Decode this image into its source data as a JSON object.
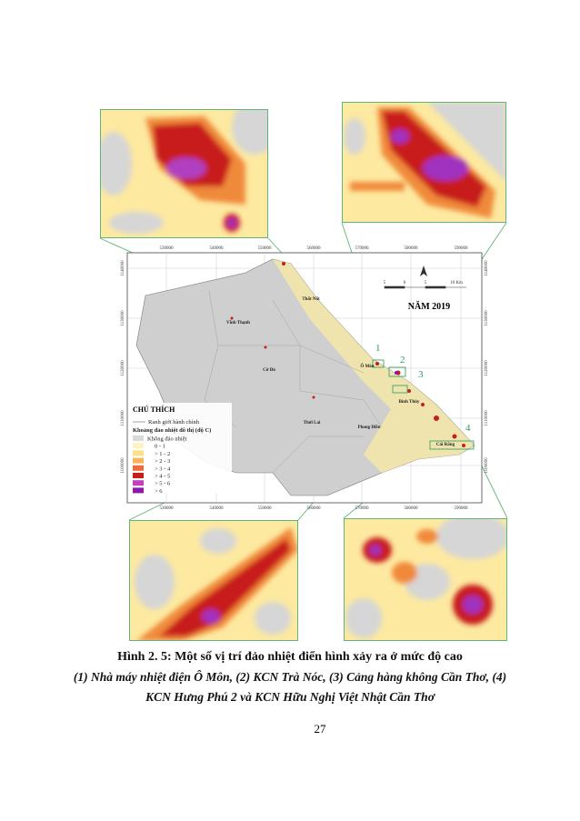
{
  "map": {
    "x_labels": [
      "530000",
      "540000",
      "550000",
      "560000",
      "570000",
      "580000",
      "590000"
    ],
    "y_labels": [
      "1140000",
      "1130000",
      "1120000",
      "1110000",
      "1100000"
    ],
    "places": [
      "Thốt Nốt",
      "Vĩnh Thạnh",
      "Cờ Đỏ",
      "Ô Môn",
      "Bình Thủy",
      "Thới Lai",
      "Phong Điền",
      "Cái Răng"
    ],
    "insets": [
      "1",
      "2",
      "3",
      "4"
    ],
    "scale": [
      "5",
      "0",
      "5",
      "10 Km"
    ],
    "year": "NĂM 2019",
    "legend": {
      "title": "CHÚ THÍCH",
      "boundary": "Ranh giới hành chính",
      "heading": "Khoảng đảo nhiệt đô thị (độ C)",
      "items": [
        {
          "label": "Không đảo nhiệt",
          "color": "#d9d9d9"
        },
        {
          "label": "0 - 1",
          "color": "#fff3c2"
        },
        {
          "label": "> 1 - 2",
          "color": "#fde08a"
        },
        {
          "label": "> 2 - 3",
          "color": "#fbb35a"
        },
        {
          "label": "> 3 - 4",
          "color": "#f26a3a"
        },
        {
          "label": "> 4 - 5",
          "color": "#c81d1d"
        },
        {
          "label": "> 5 - 6",
          "color": "#c040c0"
        },
        {
          "label": "> 6",
          "color": "#8a1aa8"
        }
      ]
    }
  },
  "caption": {
    "title": "Hình 2. 5: Một số vị trí đảo nhiệt điển hình xảy ra ở mức độ cao",
    "lines": [
      "(1) Nhà máy nhiệt điện Ô Môn, (2) KCN Trà Nóc, (3) Cảng hàng không Cần Thơ, (4)",
      "KCN Hưng Phú 2 và KCN Hữu Nghị Việt Nhật Cần Thơ"
    ]
  },
  "page_number": "27"
}
